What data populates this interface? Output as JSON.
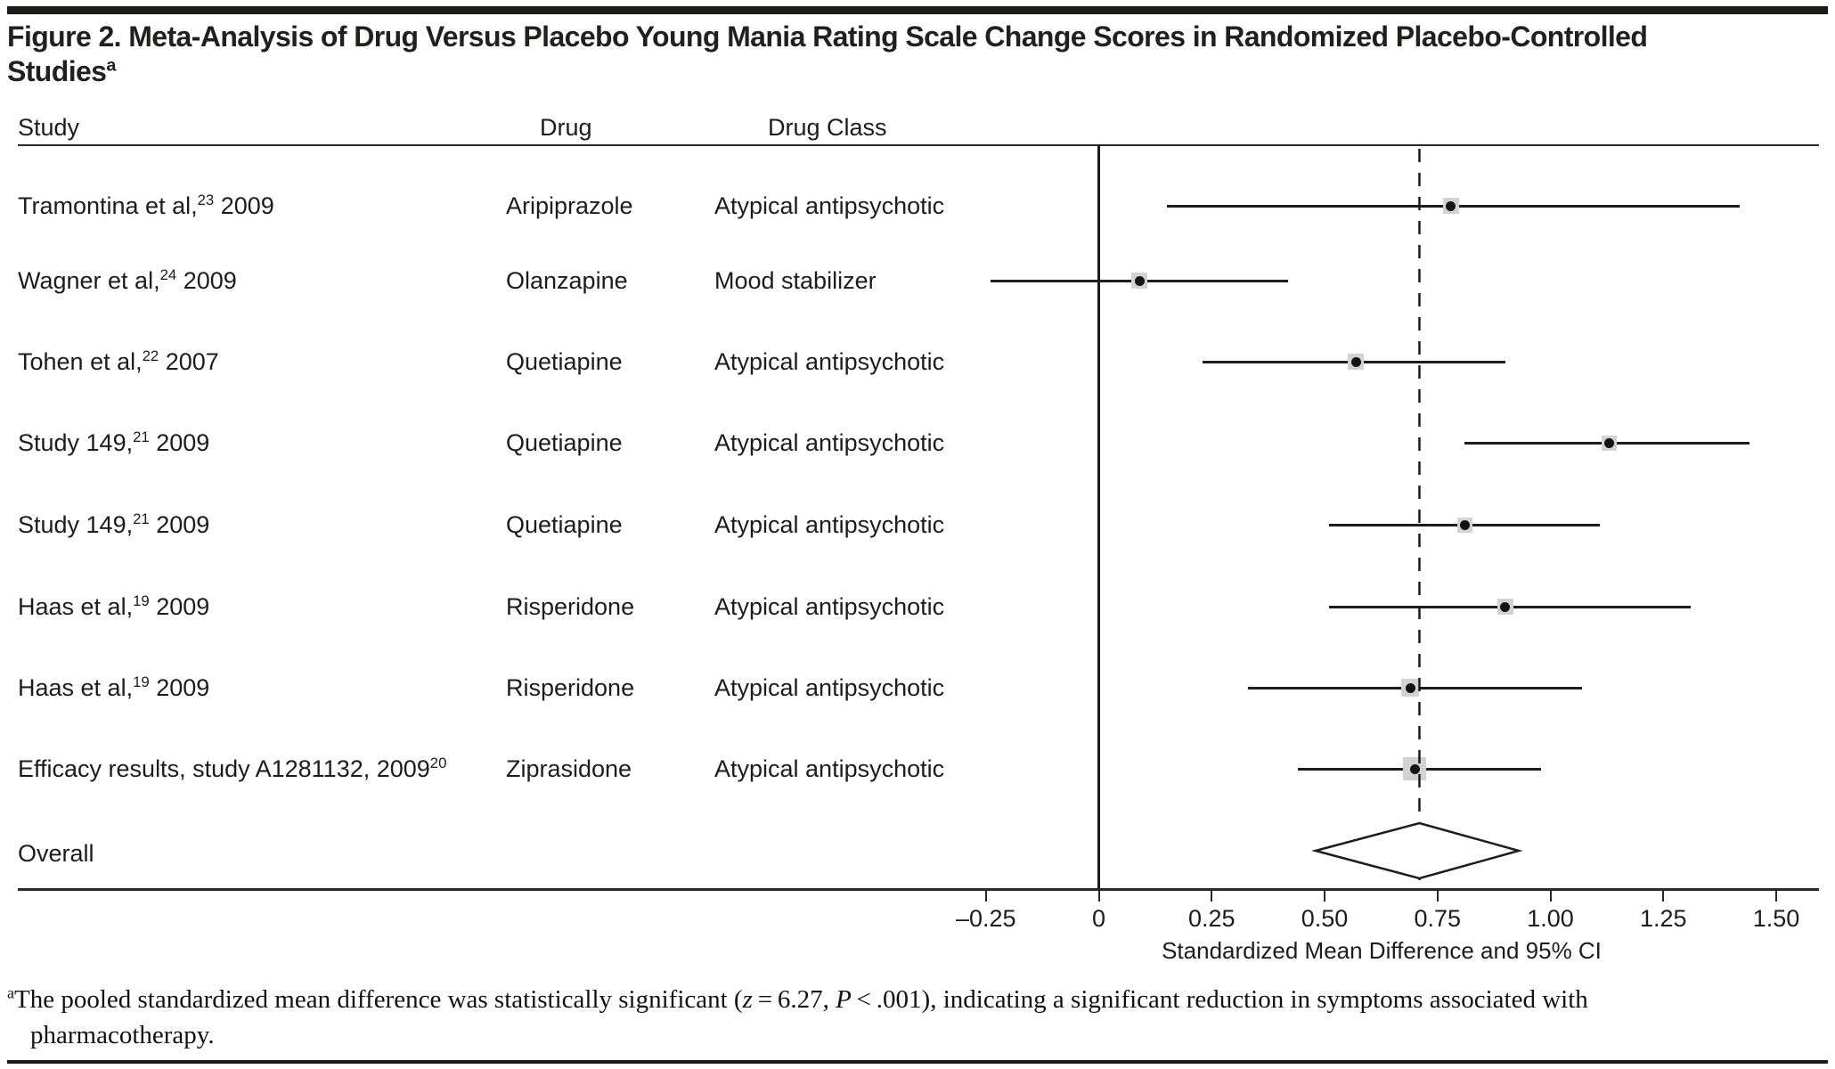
{
  "figure": {
    "title_line1": "Figure 2. Meta-Analysis of Drug Versus Placebo Young Mania Rating Scale Change Scores in Randomized Placebo-Controlled",
    "title_line2": "Studies",
    "title_footnote_mark": "a"
  },
  "columns": {
    "study": "Study",
    "drug": "Drug",
    "drug_class": "Drug Class"
  },
  "rows": [
    {
      "study_pre": "Tramontina et al,",
      "study_sup": "23",
      "study_post": " 2009",
      "drug": "Aripiprazole",
      "drug_class": "Atypical antipsychotic"
    },
    {
      "study_pre": "Wagner et al,",
      "study_sup": "24",
      "study_post": " 2009",
      "drug": "Olanzapine",
      "drug_class": "Mood stabilizer"
    },
    {
      "study_pre": "Tohen et al,",
      "study_sup": "22",
      "study_post": " 2007",
      "drug": "Quetiapine",
      "drug_class": "Atypical antipsychotic"
    },
    {
      "study_pre": "Study 149,",
      "study_sup": "21",
      "study_post": " 2009",
      "drug": "Quetiapine",
      "drug_class": "Atypical antipsychotic"
    },
    {
      "study_pre": "Study 149,",
      "study_sup": "21",
      "study_post": " 2009",
      "drug": "Quetiapine",
      "drug_class": "Atypical antipsychotic"
    },
    {
      "study_pre": "Haas et al,",
      "study_sup": "19",
      "study_post": " 2009",
      "drug": "Risperidone",
      "drug_class": "Atypical antipsychotic"
    },
    {
      "study_pre": "Haas et al,",
      "study_sup": "19",
      "study_post": " 2009",
      "drug": "Risperidone",
      "drug_class": "Atypical antipsychotic"
    },
    {
      "study_pre": "Efficacy results, study A1281132, 2009",
      "study_sup": "20",
      "study_post": "",
      "drug": "Ziprasidone",
      "drug_class": "Atypical antipsychotic"
    }
  ],
  "overall_label": "Overall",
  "axis": {
    "tick_labels": [
      "–0.25",
      "0",
      "0.25",
      "0.50",
      "0.75",
      "1.00",
      "1.25",
      "1.50"
    ],
    "label": "Standardized Mean Difference and 95% CI"
  },
  "footnote": {
    "sup": "a",
    "part1": "The pooled standardized mean difference was statistically significant (",
    "z_var": "z",
    "part2": " = 6.27, ",
    "p_var": "P",
    "part3": " < .001), indicating a significant reduction in symptoms associated with",
    "line2": "pharmacotherapy."
  },
  "colors": {
    "ink": "#1e1b1b",
    "weight_box_gray": "#d2d2d2",
    "background": "#ffffff"
  },
  "chart_data": {
    "type": "forest",
    "title": "Meta-Analysis of Drug Versus Placebo Young Mania Rating Scale Change Scores in Randomized Placebo-Controlled Studies",
    "xlabel": "Standardized Mean Difference and 95% CI",
    "xlim": [
      -0.45,
      1.62
    ],
    "tick_values": [
      -0.25,
      0,
      0.25,
      0.5,
      0.75,
      1.0,
      1.25,
      1.5
    ],
    "zero_reference_line": 0,
    "pooled_dashed_line": 0.71,
    "studies": [
      {
        "study": "Tramontina et al, 2009",
        "ref": 23,
        "drug": "Aripiprazole",
        "drug_class": "Atypical antipsychotic",
        "smd": 0.78,
        "ci_low": 0.15,
        "ci_high": 1.42,
        "marker_size_px": 18
      },
      {
        "study": "Wagner et al, 2009",
        "ref": 24,
        "drug": "Olanzapine",
        "drug_class": "Mood stabilizer",
        "smd": 0.09,
        "ci_low": -0.24,
        "ci_high": 0.42,
        "marker_size_px": 18
      },
      {
        "study": "Tohen et al, 2007",
        "ref": 22,
        "drug": "Quetiapine",
        "drug_class": "Atypical antipsychotic",
        "smd": 0.57,
        "ci_low": 0.23,
        "ci_high": 0.9,
        "marker_size_px": 18
      },
      {
        "study": "Study 149, 2009",
        "ref": 21,
        "drug": "Quetiapine",
        "drug_class": "Atypical antipsychotic",
        "smd": 1.13,
        "ci_low": 0.81,
        "ci_high": 1.44,
        "marker_size_px": 17
      },
      {
        "study": "Study 149, 2009",
        "ref": 21,
        "drug": "Quetiapine",
        "drug_class": "Atypical antipsychotic",
        "smd": 0.81,
        "ci_low": 0.51,
        "ci_high": 1.11,
        "marker_size_px": 17
      },
      {
        "study": "Haas et al, 2009",
        "ref": 19,
        "drug": "Risperidone",
        "drug_class": "Atypical antipsychotic",
        "smd": 0.9,
        "ci_low": 0.51,
        "ci_high": 1.31,
        "marker_size_px": 18
      },
      {
        "study": "Haas et al, 2009",
        "ref": 19,
        "drug": "Risperidone",
        "drug_class": "Atypical antipsychotic",
        "smd": 0.69,
        "ci_low": 0.33,
        "ci_high": 1.07,
        "marker_size_px": 20
      },
      {
        "study": "Efficacy results, study A1281132, 2009",
        "ref": 20,
        "drug": "Ziprasidone",
        "drug_class": "Atypical antipsychotic",
        "smd": 0.7,
        "ci_low": 0.44,
        "ci_high": 0.98,
        "marker_size_px": 26
      }
    ],
    "overall": {
      "label": "Overall",
      "smd": 0.71,
      "ci_low": 0.48,
      "ci_high": 0.93
    },
    "stats_note": "z = 6.27, P < .001",
    "legend_position": "none",
    "grid": false
  }
}
